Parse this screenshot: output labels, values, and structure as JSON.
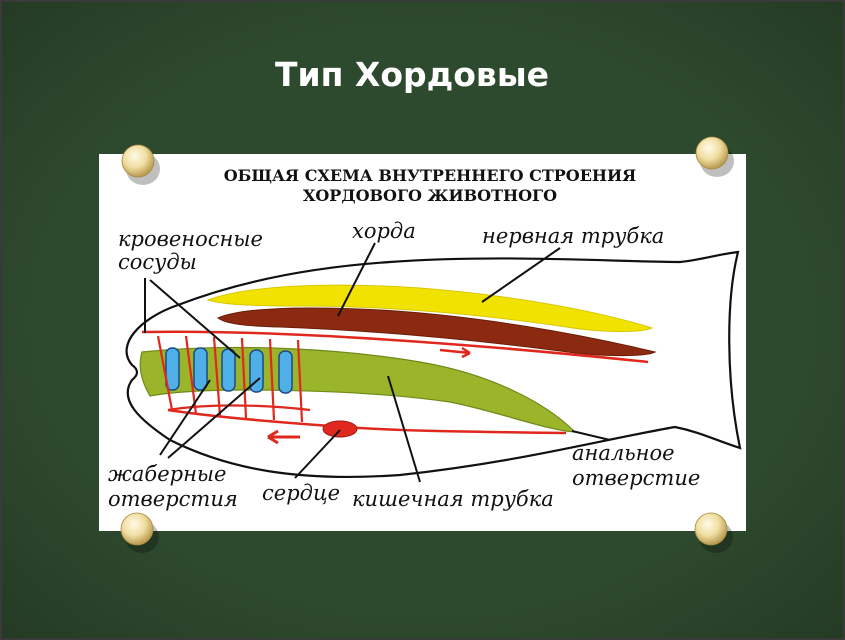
{
  "slide": {
    "title": "Тип Хордовые",
    "background_color": "#2e4a2e",
    "title_color": "#ffffff"
  },
  "diagram": {
    "heading_line1": "ОБЩАЯ СХЕМА ВНУТРЕННЕГО СТРОЕНИЯ",
    "heading_line2": "ХОРДОВОГО ЖИВОТНОГО",
    "labels": {
      "blood_vessels_line1": "кровеносные",
      "blood_vessels_line2": "сосуды",
      "notochord": "хорда",
      "neural_tube": "нервная трубка",
      "gill_slits_line1": "жаберные",
      "gill_slits_line2": "отверстия",
      "heart": "сердце",
      "gut_tube": "кишечная трубка",
      "anus_line1": "анальное",
      "anus_line2": "отверстие"
    },
    "colors": {
      "neural_tube": "#f2e200",
      "notochord": "#8b2a10",
      "gut_tube": "#9ab52a",
      "gill_slits": "#4fb0e8",
      "blood_vessels": "#e0281e"
    }
  }
}
